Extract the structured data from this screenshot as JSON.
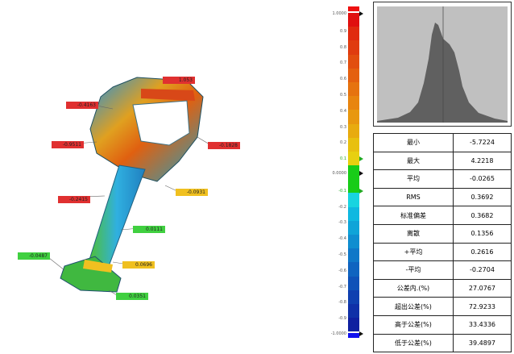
{
  "colorbar": {
    "max_label": "1.0000",
    "min_label": "-1.0000",
    "zero_label": "0.0000",
    "ticks": [
      "0.9",
      "0.8",
      "0.7",
      "0.6",
      "0.5",
      "0.4",
      "0.3",
      "0.2",
      "0.1",
      "-0.1",
      "-0.2",
      "-0.3",
      "-0.4",
      "-0.5",
      "-0.6",
      "-0.7",
      "-0.8",
      "-0.9"
    ],
    "colors": [
      "#e01010",
      "#e02a10",
      "#e03c10",
      "#e24e10",
      "#e46010",
      "#e67310",
      "#e88510",
      "#e89810",
      "#e8ab10",
      "#e8c010",
      "#e8d010",
      "#18cc18",
      "#18cc18",
      "#18d4e0",
      "#10b8e0",
      "#10a4d8",
      "#108ed0",
      "#1078c8",
      "#1064c0",
      "#1052b8",
      "#1040b0",
      "#1030a8",
      "#1020a0"
    ],
    "over_color": "#ee1111",
    "under_color": "#1111ee"
  },
  "callouts": [
    {
      "value": "1.053",
      "color": "#e03030"
    },
    {
      "value": "-0.4163",
      "color": "#e03030"
    },
    {
      "value": "-0.9511",
      "color": "#e03030"
    },
    {
      "value": "-0.1828",
      "color": "#e03030"
    },
    {
      "value": "-0.0931",
      "color": "#f0c020"
    },
    {
      "value": "-0.2415",
      "color": "#e03030"
    },
    {
      "value": "0.0111",
      "color": "#40d040"
    },
    {
      "value": "-0.0487",
      "color": "#40d040"
    },
    {
      "value": "0.0696",
      "color": "#f0c020"
    },
    {
      "value": "0.0351",
      "color": "#40d040"
    }
  ],
  "stats": [
    [
      "最小",
      "-5.7224"
    ],
    [
      "最大",
      "4.2218"
    ],
    [
      "平均",
      "-0.0265"
    ],
    [
      "RMS",
      "0.3692"
    ],
    [
      "标准偏差",
      "0.3682"
    ],
    [
      "离散",
      "0.1356"
    ],
    [
      "+平均",
      "0.2616"
    ],
    [
      "-平均",
      "-0.2704"
    ],
    [
      "公差内.(%)",
      "27.0767"
    ],
    [
      "超出公差(%)",
      "72.9233"
    ],
    [
      "高于公差(%)",
      "33.4336"
    ],
    [
      "低于公差(%)",
      "39.4897"
    ]
  ]
}
